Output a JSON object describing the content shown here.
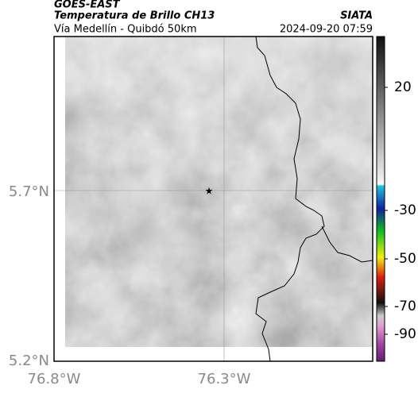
{
  "header": {
    "title": "GOES-EAST",
    "subtitle": "Temperatura de Brillo CH13",
    "route": "Vía Medellín - Quibdó 50km",
    "source": "SIATA",
    "timestamp": "2024-09-20 07:59"
  },
  "map": {
    "lat_labels": [
      "5.7°N",
      "5.2°N"
    ],
    "lon_labels": [
      "76.8°W",
      "76.3°W"
    ]
  },
  "colorbar": {
    "ticks": [
      20,
      -30,
      -50,
      -70,
      -90
    ]
  }
}
